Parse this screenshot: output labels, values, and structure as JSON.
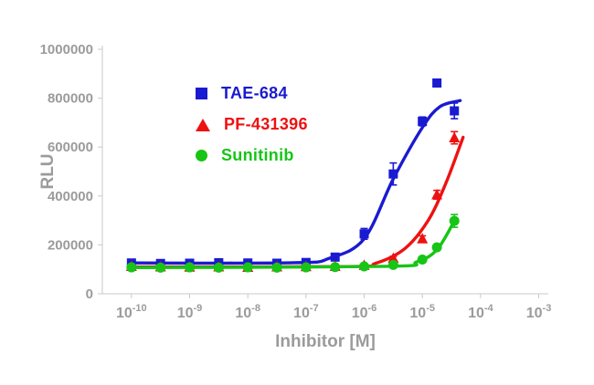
{
  "chart_data": {
    "type": "line",
    "title": "",
    "xlabel": "Inhibitor [M]",
    "ylabel": "RLU",
    "x_scale": "log10",
    "xlog_ticks": [
      -10,
      -9,
      -8,
      -7,
      -6,
      -5,
      -4,
      -3
    ],
    "xlog_range": [
      -10.5,
      -2.6
    ],
    "ylim": [
      0,
      1000000
    ],
    "y_ticks": [
      0,
      200000,
      400000,
      600000,
      800000,
      1000000
    ],
    "grid": "off",
    "legend_position": "upper-left-inside",
    "axis_text_color": "#9b9b9b",
    "series": [
      {
        "name": "TAE-684",
        "color": "#1a1ad1",
        "marker": "square",
        "x_log10": [
          -10,
          -9.5,
          -9,
          -8.5,
          -8,
          -7.5,
          -7,
          -6.5,
          -6,
          -5.5,
          -5,
          -4.75,
          -4.45
        ],
        "values": [
          126000,
          124000,
          125000,
          127000,
          126000,
          125000,
          128000,
          150000,
          245000,
          490000,
          705000,
          862000,
          748000
        ],
        "sem": [
          6000,
          4000,
          4000,
          4000,
          4000,
          4000,
          5000,
          8000,
          22000,
          45000,
          18000,
          12000,
          32000
        ],
        "fit_curve": [
          [
            -10,
            126000
          ],
          [
            -7.2,
            127000
          ],
          [
            -6.6,
            145000
          ],
          [
            -6,
            225000
          ],
          [
            -5.5,
            470000
          ],
          [
            -5,
            680000
          ],
          [
            -4.7,
            765000
          ],
          [
            -4.35,
            790000
          ]
        ]
      },
      {
        "name": "PF-431396",
        "color": "#ee1111",
        "marker": "triangle",
        "x_log10": [
          -10,
          -9.5,
          -9,
          -8.5,
          -8,
          -7.5,
          -7,
          -6.5,
          -6,
          -5.5,
          -5,
          -4.75,
          -4.45
        ],
        "values": [
          112000,
          110000,
          109000,
          110000,
          108000,
          110000,
          111000,
          112000,
          116000,
          145000,
          225000,
          405000,
          638000
        ],
        "sem": [
          4000,
          3000,
          3000,
          3000,
          3000,
          3000,
          3000,
          4000,
          5000,
          8000,
          12000,
          18000,
          25000
        ],
        "fit_curve": [
          [
            -10,
            110000
          ],
          [
            -6.3,
            111000
          ],
          [
            -5.8,
            125000
          ],
          [
            -5.3,
            185000
          ],
          [
            -4.9,
            300000
          ],
          [
            -4.6,
            450000
          ],
          [
            -4.3,
            640000
          ]
        ]
      },
      {
        "name": "Sunitinib",
        "color": "#16c516",
        "marker": "circle",
        "x_log10": [
          -10,
          -9.5,
          -9,
          -8.5,
          -8,
          -7.5,
          -7,
          -6.5,
          -6,
          -5.5,
          -5,
          -4.75,
          -4.45
        ],
        "values": [
          108000,
          107000,
          108000,
          107000,
          108000,
          107000,
          108000,
          109000,
          112000,
          118000,
          140000,
          190000,
          298000
        ],
        "sem": [
          3000,
          3000,
          3000,
          3000,
          3000,
          3000,
          3000,
          3000,
          4000,
          5000,
          7000,
          10000,
          26000
        ],
        "fit_curve": [
          [
            -10,
            107000
          ],
          [
            -5.6,
            112000
          ],
          [
            -5.1,
            130000
          ],
          [
            -4.75,
            180000
          ],
          [
            -4.45,
            298000
          ]
        ]
      }
    ]
  }
}
